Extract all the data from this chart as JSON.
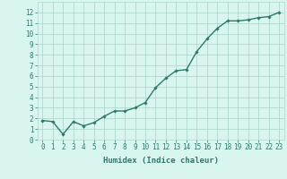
{
  "x": [
    0,
    1,
    2,
    3,
    4,
    5,
    6,
    7,
    8,
    9,
    10,
    11,
    12,
    13,
    14,
    15,
    16,
    17,
    18,
    19,
    20,
    21,
    22,
    23
  ],
  "y": [
    1.8,
    1.7,
    0.5,
    1.7,
    1.3,
    1.6,
    2.2,
    2.7,
    2.7,
    3.0,
    3.5,
    4.9,
    5.8,
    6.5,
    6.6,
    8.3,
    9.5,
    10.5,
    11.2,
    11.2,
    11.3,
    11.5,
    11.6,
    12.0
  ],
  "line_color": "#2d7a6b",
  "marker": "D",
  "marker_size": 1.8,
  "line_width": 1.0,
  "bg_color": "#d8f5f0",
  "grid_color": "#b0d8d0",
  "tick_color": "#2d7a6b",
  "label_color": "#2d7a6b",
  "xlabel": "Humidex (Indice chaleur)",
  "xlim": [
    -0.5,
    23.5
  ],
  "ylim": [
    0,
    13
  ],
  "yticks": [
    0,
    1,
    2,
    3,
    4,
    5,
    6,
    7,
    8,
    9,
    10,
    11,
    12
  ],
  "xticks": [
    0,
    1,
    2,
    3,
    4,
    5,
    6,
    7,
    8,
    9,
    10,
    11,
    12,
    13,
    14,
    15,
    16,
    17,
    18,
    19,
    20,
    21,
    22,
    23
  ],
  "xtick_labels": [
    "0",
    "1",
    "2",
    "3",
    "4",
    "5",
    "6",
    "7",
    "8",
    "9",
    "10",
    "11",
    "12",
    "13",
    "14",
    "15",
    "16",
    "17",
    "18",
    "19",
    "20",
    "21",
    "22",
    "23"
  ],
  "xlabel_fontsize": 6.5,
  "tick_fontsize": 5.5
}
